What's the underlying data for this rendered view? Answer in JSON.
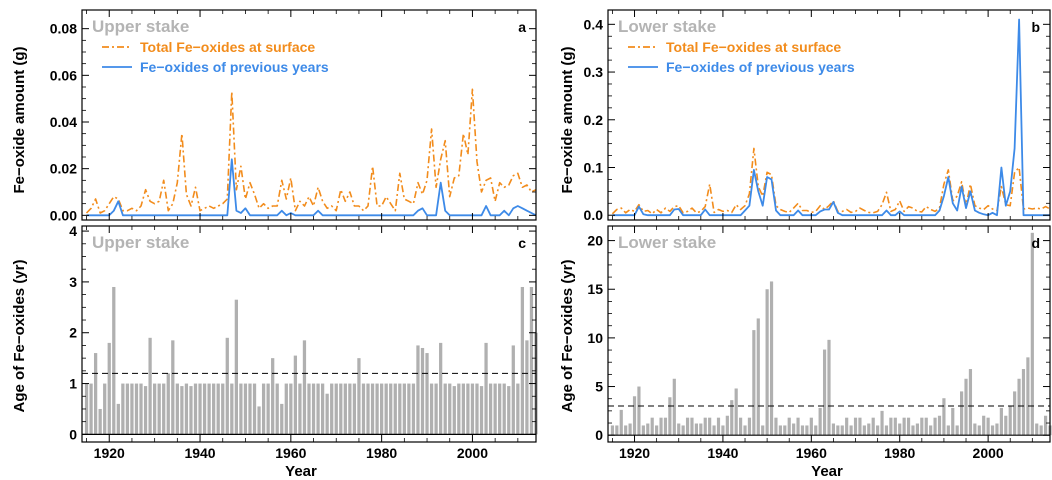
{
  "colors": {
    "orange": "#f28c1c",
    "blue": "#3d8ae8",
    "bar": "#b0b0b0",
    "panel_title": "#b4b4b4",
    "dark_blue": "#1f2a6e"
  },
  "figure": {
    "x_axis_label": "Year",
    "y_axis_label_top": "Fe−oxide amount (g)",
    "y_axis_label_bottom": "Age of Fe−oxides (yr)"
  },
  "chart_data": [
    {
      "panel": "a",
      "type": "line",
      "title": "Upper stake",
      "xlim": [
        1914,
        2014
      ],
      "ylim": [
        -0.002,
        0.088
      ],
      "yticks": [
        0.0,
        0.02,
        0.04,
        0.06,
        0.08
      ],
      "ytick_labels": [
        "0.00",
        "0.02",
        "0.04",
        "0.06",
        "0.08"
      ],
      "xticks": [
        1920,
        1940,
        1960,
        1980,
        2000
      ],
      "xtick_labels": [
        "",
        "",
        "",
        "",
        ""
      ],
      "ylabel": "Fe−oxide amount (g)",
      "legend_position": "top-left",
      "x": [
        1915,
        1916,
        1917,
        1918,
        1919,
        1920,
        1921,
        1922,
        1923,
        1924,
        1925,
        1926,
        1927,
        1928,
        1929,
        1930,
        1931,
        1932,
        1933,
        1934,
        1935,
        1936,
        1937,
        1938,
        1939,
        1940,
        1941,
        1942,
        1943,
        1944,
        1945,
        1946,
        1947,
        1948,
        1949,
        1950,
        1951,
        1952,
        1953,
        1954,
        1955,
        1956,
        1957,
        1958,
        1959,
        1960,
        1961,
        1962,
        1963,
        1964,
        1965,
        1966,
        1967,
        1968,
        1969,
        1970,
        1971,
        1972,
        1973,
        1974,
        1975,
        1976,
        1977,
        1978,
        1979,
        1980,
        1981,
        1982,
        1983,
        1984,
        1985,
        1986,
        1987,
        1988,
        1989,
        1990,
        1991,
        1992,
        1993,
        1994,
        1995,
        1996,
        1997,
        1998,
        1999,
        2000,
        2001,
        2002,
        2003,
        2004,
        2005,
        2006,
        2007,
        2008,
        2009,
        2010,
        2011,
        2012,
        2013,
        2014
      ],
      "series": [
        {
          "name": "Total Fe−oxides at surface",
          "color": "#f28c1c",
          "style": "dashdot",
          "values": [
            0.001,
            0.003,
            0.007,
            0.001,
            0.002,
            0.005,
            0.008,
            0.007,
            0.002,
            0.002,
            0.003,
            0.002,
            0.004,
            0.011,
            0.006,
            0.005,
            0.006,
            0.015,
            0.002,
            0.005,
            0.014,
            0.035,
            0.009,
            0.004,
            0.012,
            0.002,
            0.003,
            0.004,
            0.003,
            0.004,
            0.005,
            0.007,
            0.053,
            0.011,
            0.021,
            0.007,
            0.014,
            0.009,
            0.003,
            0.005,
            0.003,
            0.004,
            0.004,
            0.015,
            0.007,
            0.016,
            0.002,
            0.006,
            0.004,
            0.008,
            0.004,
            0.012,
            0.006,
            0.003,
            0.004,
            0.002,
            0.011,
            0.006,
            0.01,
            0.004,
            0.004,
            0.002,
            0.004,
            0.021,
            0.004,
            0.004,
            0.008,
            0.005,
            0.002,
            0.018,
            0.007,
            0.006,
            0.005,
            0.014,
            0.009,
            0.015,
            0.037,
            0.012,
            0.024,
            0.032,
            0.008,
            0.016,
            0.017,
            0.035,
            0.026,
            0.054,
            0.023,
            0.01,
            0.015,
            0.016,
            0.006,
            0.014,
            0.012,
            0.013,
            0.017,
            0.018,
            0.012,
            0.013,
            0.01,
            0.011
          ]
        },
        {
          "name": "Fe−oxides of previous years",
          "color": "#3d8ae8",
          "style": "solid",
          "values": [
            0.0,
            0.0,
            0.0,
            0.0,
            0.0,
            0.0,
            0.002,
            0.006,
            0.0,
            0.0,
            0.0,
            0.0,
            0.0,
            0.0,
            0.0,
            0.0,
            0.0,
            0.0,
            0.0,
            0.0,
            0.0,
            0.0,
            0.0,
            0.0,
            0.0,
            0.0,
            0.0,
            0.0,
            0.0,
            0.0,
            0.0,
            0.0,
            0.024,
            0.002,
            0.001,
            0.003,
            0.0,
            0.0,
            0.0,
            0.0,
            0.0,
            0.0,
            0.0,
            0.002,
            0.0,
            0.001,
            0.0,
            0.0,
            0.0,
            0.0,
            0.0,
            0.002,
            0.0,
            0.0,
            0.0,
            0.0,
            0.0,
            0.0,
            0.0,
            0.0,
            0.0,
            0.0,
            0.0,
            0.0,
            0.0,
            0.0,
            0.0,
            0.0,
            0.0,
            0.0,
            0.0,
            0.0,
            0.0,
            0.002,
            0.003,
            0.0,
            0.0,
            0.0,
            0.014,
            0.002,
            0.0,
            0.0,
            0.0,
            0.0,
            0.0,
            0.0,
            0.0,
            0.0,
            0.004,
            0.0,
            0.0,
            0.0,
            0.002,
            0.0,
            0.003,
            0.004,
            0.003,
            0.002,
            0.001,
            0.0
          ]
        }
      ]
    },
    {
      "panel": "b",
      "type": "line",
      "title": "Lower stake",
      "xlim": [
        1914,
        2014
      ],
      "ylim": [
        -0.01,
        0.43
      ],
      "yticks": [
        0.0,
        0.1,
        0.2,
        0.3,
        0.4
      ],
      "ytick_labels": [
        "0.0",
        "0.1",
        "0.2",
        "0.3",
        "0.4"
      ],
      "xticks": [
        1920,
        1940,
        1960,
        1980,
        2000
      ],
      "xtick_labels": [
        "",
        "",
        "",
        "",
        ""
      ],
      "ylabel": "Fe−oxide amount (g)",
      "legend_position": "top-left",
      "x": [
        1915,
        1916,
        1917,
        1918,
        1919,
        1920,
        1921,
        1922,
        1923,
        1924,
        1925,
        1926,
        1927,
        1928,
        1929,
        1930,
        1931,
        1932,
        1933,
        1934,
        1935,
        1936,
        1937,
        1938,
        1939,
        1940,
        1941,
        1942,
        1943,
        1944,
        1945,
        1946,
        1947,
        1948,
        1949,
        1950,
        1951,
        1952,
        1953,
        1954,
        1955,
        1956,
        1957,
        1958,
        1959,
        1960,
        1961,
        1962,
        1963,
        1964,
        1965,
        1966,
        1967,
        1968,
        1969,
        1970,
        1971,
        1972,
        1973,
        1974,
        1975,
        1976,
        1977,
        1978,
        1979,
        1980,
        1981,
        1982,
        1983,
        1984,
        1985,
        1986,
        1987,
        1988,
        1989,
        1990,
        1991,
        1992,
        1993,
        1994,
        1995,
        1996,
        1997,
        1998,
        1999,
        2000,
        2001,
        2002,
        2003,
        2004,
        2005,
        2006,
        2007,
        2008,
        2009,
        2010,
        2011,
        2012,
        2013,
        2014
      ],
      "series": [
        {
          "name": "Total Fe−oxides at surface",
          "color": "#f28c1c",
          "style": "dashdot",
          "values": [
            0.003,
            0.012,
            0.015,
            0.005,
            0.012,
            0.008,
            0.022,
            0.008,
            0.01,
            0.003,
            0.012,
            0.005,
            0.015,
            0.008,
            0.018,
            0.02,
            0.005,
            0.008,
            0.015,
            0.005,
            0.008,
            0.018,
            0.065,
            0.006,
            0.012,
            0.008,
            0.01,
            0.006,
            0.022,
            0.012,
            0.02,
            0.045,
            0.14,
            0.06,
            0.04,
            0.09,
            0.085,
            0.02,
            0.012,
            0.008,
            0.006,
            0.015,
            0.025,
            0.01,
            0.01,
            0.006,
            0.008,
            0.02,
            0.012,
            0.02,
            0.03,
            0.008,
            0.008,
            0.012,
            0.006,
            0.008,
            0.015,
            0.01,
            0.006,
            0.005,
            0.008,
            0.022,
            0.048,
            0.008,
            0.012,
            0.03,
            0.008,
            0.018,
            0.015,
            0.008,
            0.007,
            0.018,
            0.012,
            0.008,
            0.015,
            0.065,
            0.095,
            0.03,
            0.04,
            0.07,
            0.02,
            0.065,
            0.02,
            0.015,
            0.012,
            0.02,
            0.013,
            0.01,
            0.06,
            0.022,
            0.02,
            0.09,
            0.1,
            0.013,
            0.015,
            0.013,
            0.015,
            0.013,
            0.018,
            0.013
          ]
        },
        {
          "name": "Fe−oxides of previous years",
          "color": "#3d8ae8",
          "style": "solid",
          "values": [
            0.0,
            0.0,
            0.0,
            0.0,
            0.0,
            0.0,
            0.018,
            0.002,
            0.0,
            0.0,
            0.0,
            0.0,
            0.0,
            0.0,
            0.012,
            0.013,
            0.0,
            0.0,
            0.0,
            0.0,
            0.0,
            0.012,
            0.0,
            0.0,
            0.0,
            0.0,
            0.0,
            0.0,
            0.0,
            0.0,
            0.01,
            0.02,
            0.095,
            0.05,
            0.02,
            0.08,
            0.075,
            0.01,
            0.0,
            0.0,
            0.0,
            0.0,
            0.01,
            0.0,
            0.0,
            0.0,
            0.0,
            0.008,
            0.012,
            0.012,
            0.028,
            0.005,
            0.0,
            0.0,
            0.0,
            0.0,
            0.0,
            0.0,
            0.0,
            0.0,
            0.0,
            0.0,
            0.01,
            0.0,
            0.0,
            0.008,
            0.0,
            0.0,
            0.0,
            0.0,
            0.0,
            0.0,
            0.0,
            0.0,
            0.01,
            0.04,
            0.08,
            0.025,
            0.01,
            0.06,
            0.015,
            0.05,
            0.01,
            0.005,
            0.002,
            0.0,
            0.005,
            0.0,
            0.1,
            0.02,
            0.05,
            0.14,
            0.41,
            0.0,
            0.0,
            0.0,
            0.0,
            0.0,
            0.0,
            0.0
          ]
        }
      ]
    },
    {
      "panel": "c",
      "type": "bar",
      "title": "Upper stake",
      "xlim": [
        1914,
        2014
      ],
      "ylim": [
        -0.15,
        4.1
      ],
      "yticks": [
        0,
        1,
        2,
        3,
        4
      ],
      "ytick_labels": [
        "0",
        "1",
        "2",
        "3",
        "4"
      ],
      "xticks": [
        1920,
        1940,
        1960,
        1980,
        2000
      ],
      "xtick_labels": [
        "1920",
        "1940",
        "1960",
        "1980",
        "2000"
      ],
      "ylabel": "Age of Fe−oxides (yr)",
      "xlabel": "Year",
      "mean_line": 1.2,
      "x": [
        1915,
        1916,
        1917,
        1918,
        1919,
        1920,
        1921,
        1922,
        1923,
        1924,
        1925,
        1926,
        1927,
        1928,
        1929,
        1930,
        1931,
        1932,
        1933,
        1934,
        1935,
        1936,
        1937,
        1938,
        1939,
        1940,
        1941,
        1942,
        1943,
        1944,
        1945,
        1946,
        1947,
        1948,
        1949,
        1950,
        1951,
        1952,
        1953,
        1954,
        1955,
        1956,
        1957,
        1958,
        1959,
        1960,
        1961,
        1962,
        1963,
        1964,
        1965,
        1966,
        1967,
        1968,
        1969,
        1970,
        1971,
        1972,
        1973,
        1974,
        1975,
        1976,
        1977,
        1978,
        1979,
        1980,
        1981,
        1982,
        1983,
        1984,
        1985,
        1986,
        1987,
        1988,
        1989,
        1990,
        1991,
        1992,
        1993,
        1994,
        1995,
        1996,
        1997,
        1998,
        1999,
        2000,
        2001,
        2002,
        2003,
        2004,
        2005,
        2006,
        2007,
        2008,
        2009,
        2010,
        2011,
        2012,
        2013,
        2014
      ],
      "values": [
        1.0,
        1.0,
        1.6,
        0.5,
        1.0,
        1.8,
        2.9,
        0.6,
        1.0,
        1.0,
        1.0,
        1.0,
        1.0,
        0.95,
        1.9,
        1.0,
        1.0,
        1.0,
        1.2,
        1.85,
        1.0,
        0.95,
        1.0,
        0.95,
        1.0,
        1.0,
        1.0,
        1.0,
        1.0,
        1.0,
        1.0,
        1.9,
        1.0,
        2.65,
        1.0,
        1.0,
        1.0,
        1.0,
        0.55,
        1.0,
        1.0,
        1.5,
        1.0,
        0.6,
        1.0,
        1.0,
        1.55,
        1.0,
        1.85,
        1.0,
        1.0,
        1.0,
        1.0,
        0.8,
        1.0,
        1.0,
        1.0,
        1.0,
        1.0,
        1.0,
        1.5,
        1.0,
        1.0,
        1.0,
        1.0,
        1.0,
        1.0,
        1.0,
        1.0,
        1.0,
        1.0,
        1.0,
        1.0,
        1.75,
        1.7,
        1.6,
        1.0,
        1.0,
        1.8,
        1.0,
        1.0,
        0.95,
        1.0,
        1.0,
        1.0,
        1.0,
        1.0,
        0.95,
        1.8,
        1.0,
        1.0,
        1.0,
        1.0,
        0.95,
        1.75,
        1.0,
        2.9,
        1.85,
        2.9,
        2.0
      ]
    },
    {
      "panel": "d",
      "type": "bar",
      "title": "Lower stake",
      "xlim": [
        1914,
        2014
      ],
      "ylim": [
        -0.7,
        21.5
      ],
      "yticks": [
        0,
        5,
        10,
        15,
        20
      ],
      "ytick_labels": [
        "0",
        "5",
        "10",
        "15",
        "20"
      ],
      "xticks": [
        1920,
        1940,
        1960,
        1980,
        2000
      ],
      "xtick_labels": [
        "1920",
        "1940",
        "1960",
        "1980",
        "2000"
      ],
      "ylabel": "Age of Fe−oxides (yr)",
      "xlabel": "Year",
      "mean_line": 3.0,
      "x": [
        1915,
        1916,
        1917,
        1918,
        1919,
        1920,
        1921,
        1922,
        1923,
        1924,
        1925,
        1926,
        1927,
        1928,
        1929,
        1930,
        1931,
        1932,
        1933,
        1934,
        1935,
        1936,
        1937,
        1938,
        1939,
        1940,
        1941,
        1942,
        1943,
        1944,
        1945,
        1946,
        1947,
        1948,
        1949,
        1950,
        1951,
        1952,
        1953,
        1954,
        1955,
        1956,
        1957,
        1958,
        1959,
        1960,
        1961,
        1962,
        1963,
        1964,
        1965,
        1966,
        1967,
        1968,
        1969,
        1970,
        1971,
        1972,
        1973,
        1974,
        1975,
        1976,
        1977,
        1978,
        1979,
        1980,
        1981,
        1982,
        1983,
        1984,
        1985,
        1986,
        1987,
        1988,
        1989,
        1990,
        1991,
        1992,
        1993,
        1994,
        1995,
        1996,
        1997,
        1998,
        1999,
        2000,
        2001,
        2002,
        2003,
        2004,
        2005,
        2006,
        2007,
        2008,
        2009,
        2010,
        2011,
        2012,
        2013,
        2014
      ],
      "values": [
        1.0,
        1.0,
        2.6,
        1.0,
        1.2,
        4.0,
        5.0,
        1.0,
        1.2,
        1.8,
        1.0,
        1.8,
        1.8,
        3.9,
        5.8,
        1.2,
        1.0,
        1.8,
        1.8,
        1.2,
        1.2,
        1.8,
        1.8,
        1.0,
        1.8,
        1.0,
        2.0,
        3.6,
        4.8,
        1.8,
        1.0,
        1.8,
        10.8,
        12.0,
        1.0,
        15.0,
        15.8,
        1.8,
        1.0,
        1.0,
        1.8,
        1.2,
        1.8,
        1.0,
        1.0,
        1.8,
        1.0,
        2.8,
        8.8,
        9.8,
        1.2,
        1.0,
        1.0,
        1.8,
        1.0,
        1.8,
        1.8,
        1.0,
        1.2,
        1.8,
        1.0,
        2.5,
        1.0,
        1.8,
        1.8,
        1.2,
        1.8,
        1.8,
        1.0,
        1.2,
        1.8,
        1.8,
        1.0,
        1.8,
        2.0,
        3.8,
        1.0,
        2.8,
        1.0,
        4.5,
        5.8,
        6.8,
        1.2,
        1.0,
        2.0,
        1.8,
        1.0,
        1.2,
        2.8,
        2.0,
        3.0,
        4.5,
        5.8,
        6.8,
        8.0,
        20.8,
        1.2,
        1.0,
        2.0,
        1.0
      ]
    }
  ]
}
